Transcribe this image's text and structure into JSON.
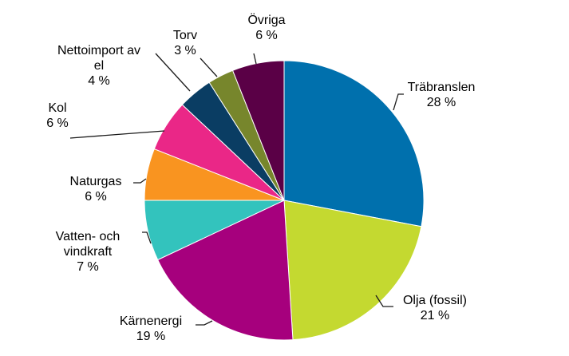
{
  "chart_data": {
    "type": "pie",
    "start_angle_deg": 0,
    "direction": "clockwise",
    "slices": [
      {
        "label_lines": [
          "Träbranslen"
        ],
        "value": 28,
        "value_label": "28 %",
        "color": "#0070ad"
      },
      {
        "label_lines": [
          "Olja (fossil)"
        ],
        "value": 21,
        "value_label": "21 %",
        "color": "#c4d930"
      },
      {
        "label_lines": [
          "Kärnenergi"
        ],
        "value": 19,
        "value_label": "19 %",
        "color": "#a6007d"
      },
      {
        "label_lines": [
          "Vatten- och",
          "vindkraft"
        ],
        "value": 7,
        "value_label": "7 %",
        "color": "#33c3bd"
      },
      {
        "label_lines": [
          "Naturgas"
        ],
        "value": 6,
        "value_label": "6 %",
        "color": "#f99420"
      },
      {
        "label_lines": [
          "Kol"
        ],
        "value": 6,
        "value_label": "6 %",
        "color": "#ea2787"
      },
      {
        "label_lines": [
          "Nettoimport av",
          "el"
        ],
        "value": 4,
        "value_label": "4 %",
        "color": "#0a3d63"
      },
      {
        "label_lines": [
          "Torv"
        ],
        "value": 3,
        "value_label": "3 %",
        "color": "#77862c"
      },
      {
        "label_lines": [
          "Övriga"
        ],
        "value": 6,
        "value_label": "6 %",
        "color": "#5a0046"
      }
    ]
  }
}
